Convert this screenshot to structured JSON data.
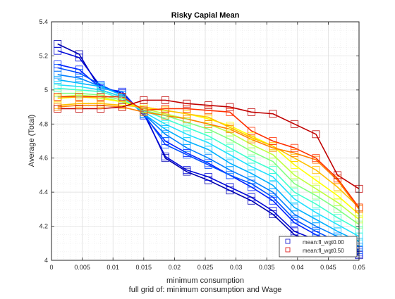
{
  "chart_data": {
    "type": "line",
    "title": "Risky Capial Mean",
    "xlabel": "minimum consumption",
    "ylabel": "Average (Total)",
    "subtitle": "full grid of: minimum consumption and Wage",
    "xlim": [
      0,
      0.05
    ],
    "ylim": [
      4,
      5.4
    ],
    "x": [
      0.001,
      0.0045,
      0.008,
      0.0115,
      0.015,
      0.0185,
      0.022,
      0.0255,
      0.029,
      0.0325,
      0.036,
      0.0395,
      0.043,
      0.0465,
      0.05
    ],
    "x_ticks": [
      0,
      0.005,
      0.01,
      0.015,
      0.02,
      0.025,
      0.03,
      0.035,
      0.04,
      0.045,
      0.05
    ],
    "x_tick_labels": [
      "0",
      "0.005",
      "0.01",
      "0.015",
      "0.02",
      "0.025",
      "0.03",
      "0.035",
      "0.04",
      "0.045",
      "0.05"
    ],
    "y_ticks": [
      4,
      4.2,
      4.4,
      4.6,
      4.8,
      5,
      5.2,
      5.4
    ],
    "y_tick_labels": [
      "4",
      "4.2",
      "4.4",
      "4.6",
      "4.8",
      "5",
      "5.2",
      "5.4"
    ],
    "grid": true,
    "minor_grid": true,
    "legend_position": "bottom-right",
    "legend": [
      {
        "label": "mean:fl_wgt0.00",
        "color": "#1f1fd0"
      },
      {
        "label": "mean:fl_wgt0.50",
        "color": "#e02020"
      }
    ],
    "series": [
      {
        "color": "#0000b0",
        "values": [
          5.27,
          5.21,
          5.0,
          4.96,
          4.87,
          4.6,
          4.52,
          4.47,
          4.41,
          4.35,
          4.27,
          4.15,
          4.1,
          4.07,
          4.03
        ]
      },
      {
        "color": "#0008d8",
        "values": [
          5.23,
          5.19,
          5.02,
          4.98,
          4.86,
          4.61,
          4.53,
          4.49,
          4.43,
          4.37,
          4.29,
          4.17,
          4.12,
          4.08,
          4.04
        ]
      },
      {
        "color": "#0020ff",
        "values": [
          5.15,
          5.12,
          5.01,
          4.99,
          4.85,
          4.7,
          4.63,
          4.57,
          4.5,
          4.43,
          4.35,
          4.22,
          4.15,
          4.1,
          4.05
        ]
      },
      {
        "color": "#0050ff",
        "values": [
          5.13,
          5.1,
          5.03,
          4.97,
          4.86,
          4.68,
          4.62,
          4.56,
          4.5,
          4.45,
          4.37,
          4.24,
          4.17,
          4.11,
          4.06
        ]
      },
      {
        "color": "#0080ff",
        "values": [
          5.09,
          5.07,
          5.02,
          4.97,
          4.86,
          4.74,
          4.66,
          4.6,
          4.53,
          4.47,
          4.4,
          4.27,
          4.2,
          4.14,
          4.08
        ]
      },
      {
        "color": "#00b0ff",
        "values": [
          5.06,
          5.04,
          5.02,
          4.97,
          4.86,
          4.77,
          4.7,
          4.65,
          4.57,
          4.51,
          4.44,
          4.31,
          4.24,
          4.17,
          4.11
        ]
      },
      {
        "color": "#20e0ff",
        "values": [
          5.03,
          5.02,
          5.0,
          4.96,
          4.87,
          4.8,
          4.74,
          4.69,
          4.62,
          4.55,
          4.49,
          4.36,
          4.28,
          4.21,
          4.14
        ]
      },
      {
        "color": "#40ffd0",
        "values": [
          5.01,
          5.0,
          4.99,
          4.95,
          4.88,
          4.83,
          4.78,
          4.73,
          4.66,
          4.59,
          4.53,
          4.4,
          4.33,
          4.25,
          4.18
        ]
      },
      {
        "color": "#80ff80",
        "values": [
          4.98,
          4.98,
          4.97,
          4.94,
          4.88,
          4.85,
          4.81,
          4.77,
          4.71,
          4.64,
          4.58,
          4.45,
          4.38,
          4.3,
          4.21
        ]
      },
      {
        "color": "#c0ff40",
        "values": [
          4.96,
          4.97,
          4.96,
          4.93,
          4.89,
          4.86,
          4.83,
          4.8,
          4.75,
          4.68,
          4.62,
          4.5,
          4.42,
          4.34,
          4.24
        ]
      },
      {
        "color": "#ffff00",
        "values": [
          4.95,
          4.96,
          4.95,
          4.93,
          4.89,
          4.88,
          4.86,
          4.83,
          4.79,
          4.73,
          4.67,
          4.56,
          4.47,
          4.38,
          4.27
        ]
      },
      {
        "color": "#ffc000",
        "values": [
          4.91,
          4.92,
          4.92,
          4.91,
          4.9,
          4.88,
          4.86,
          4.84,
          4.78,
          4.72,
          4.67,
          4.6,
          4.53,
          4.43,
          4.31
        ]
      },
      {
        "color": "#ff8000",
        "values": [
          4.9,
          4.91,
          4.91,
          4.9,
          4.87,
          4.85,
          4.83,
          4.8,
          4.77,
          4.71,
          4.66,
          4.63,
          4.59,
          4.47,
          4.3
        ]
      },
      {
        "color": "#ff3000",
        "values": [
          4.96,
          4.96,
          4.96,
          4.96,
          4.88,
          4.89,
          4.89,
          4.88,
          4.87,
          4.76,
          4.7,
          4.66,
          4.6,
          4.48,
          4.31
        ]
      },
      {
        "color": "#c00000",
        "values": [
          4.89,
          4.89,
          4.89,
          4.9,
          4.94,
          4.94,
          4.92,
          4.91,
          4.9,
          4.87,
          4.86,
          4.8,
          4.74,
          4.5,
          4.42
        ]
      }
    ]
  }
}
